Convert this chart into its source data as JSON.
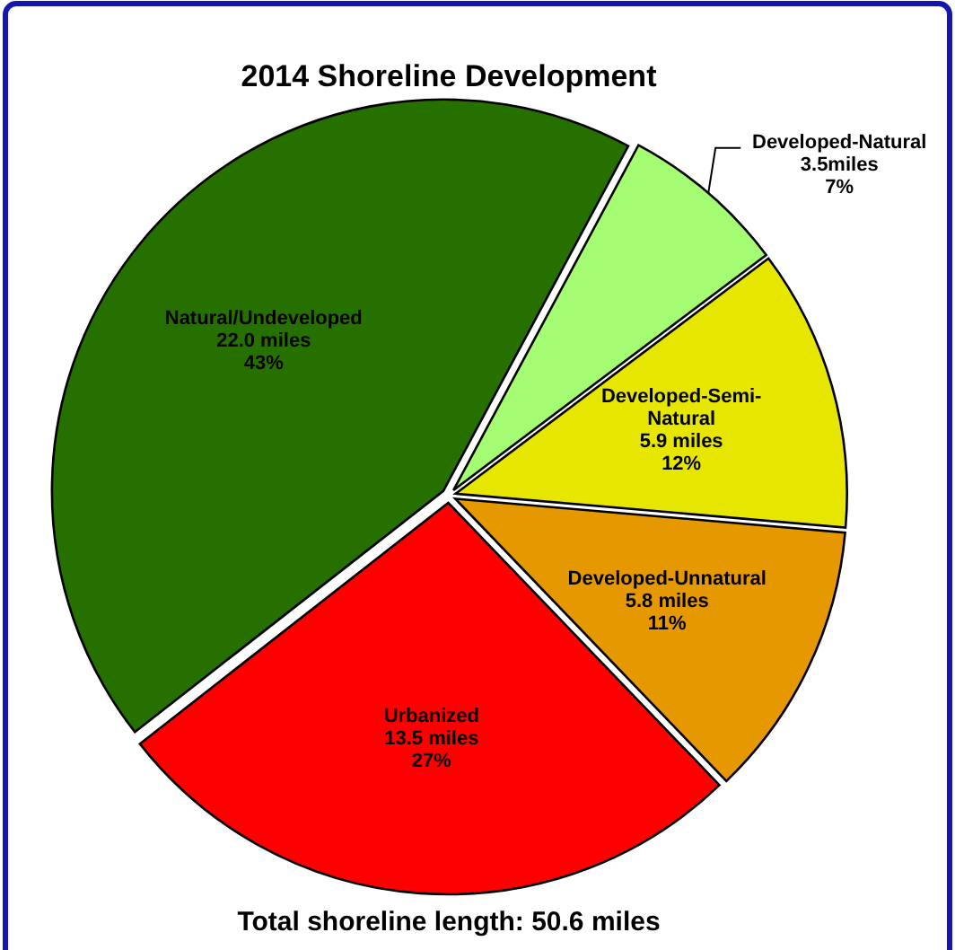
{
  "chart_data": {
    "type": "pie",
    "title": "2014 Shoreline Development",
    "categories": [
      "Natural/Undeveloped",
      "Developed-Natural",
      "Developed-Semi-Natural",
      "Developed-Unnatural",
      "Urbanized"
    ],
    "values": [
      22.0,
      3.5,
      5.9,
      5.8,
      13.5
    ],
    "colors": [
      "#267000",
      "#a3fc72",
      "#e6e600",
      "#e69800",
      "#fe0000"
    ],
    "value_labels": [
      "22.0 miles\n43%",
      "3.5miles\n7%",
      "5.9 miles\n12%",
      "5.8 miles\n11%",
      "13.5 miles\n27%"
    ],
    "annotations": [
      "Total shoreline length: 50.6 miles"
    ]
  }
}
